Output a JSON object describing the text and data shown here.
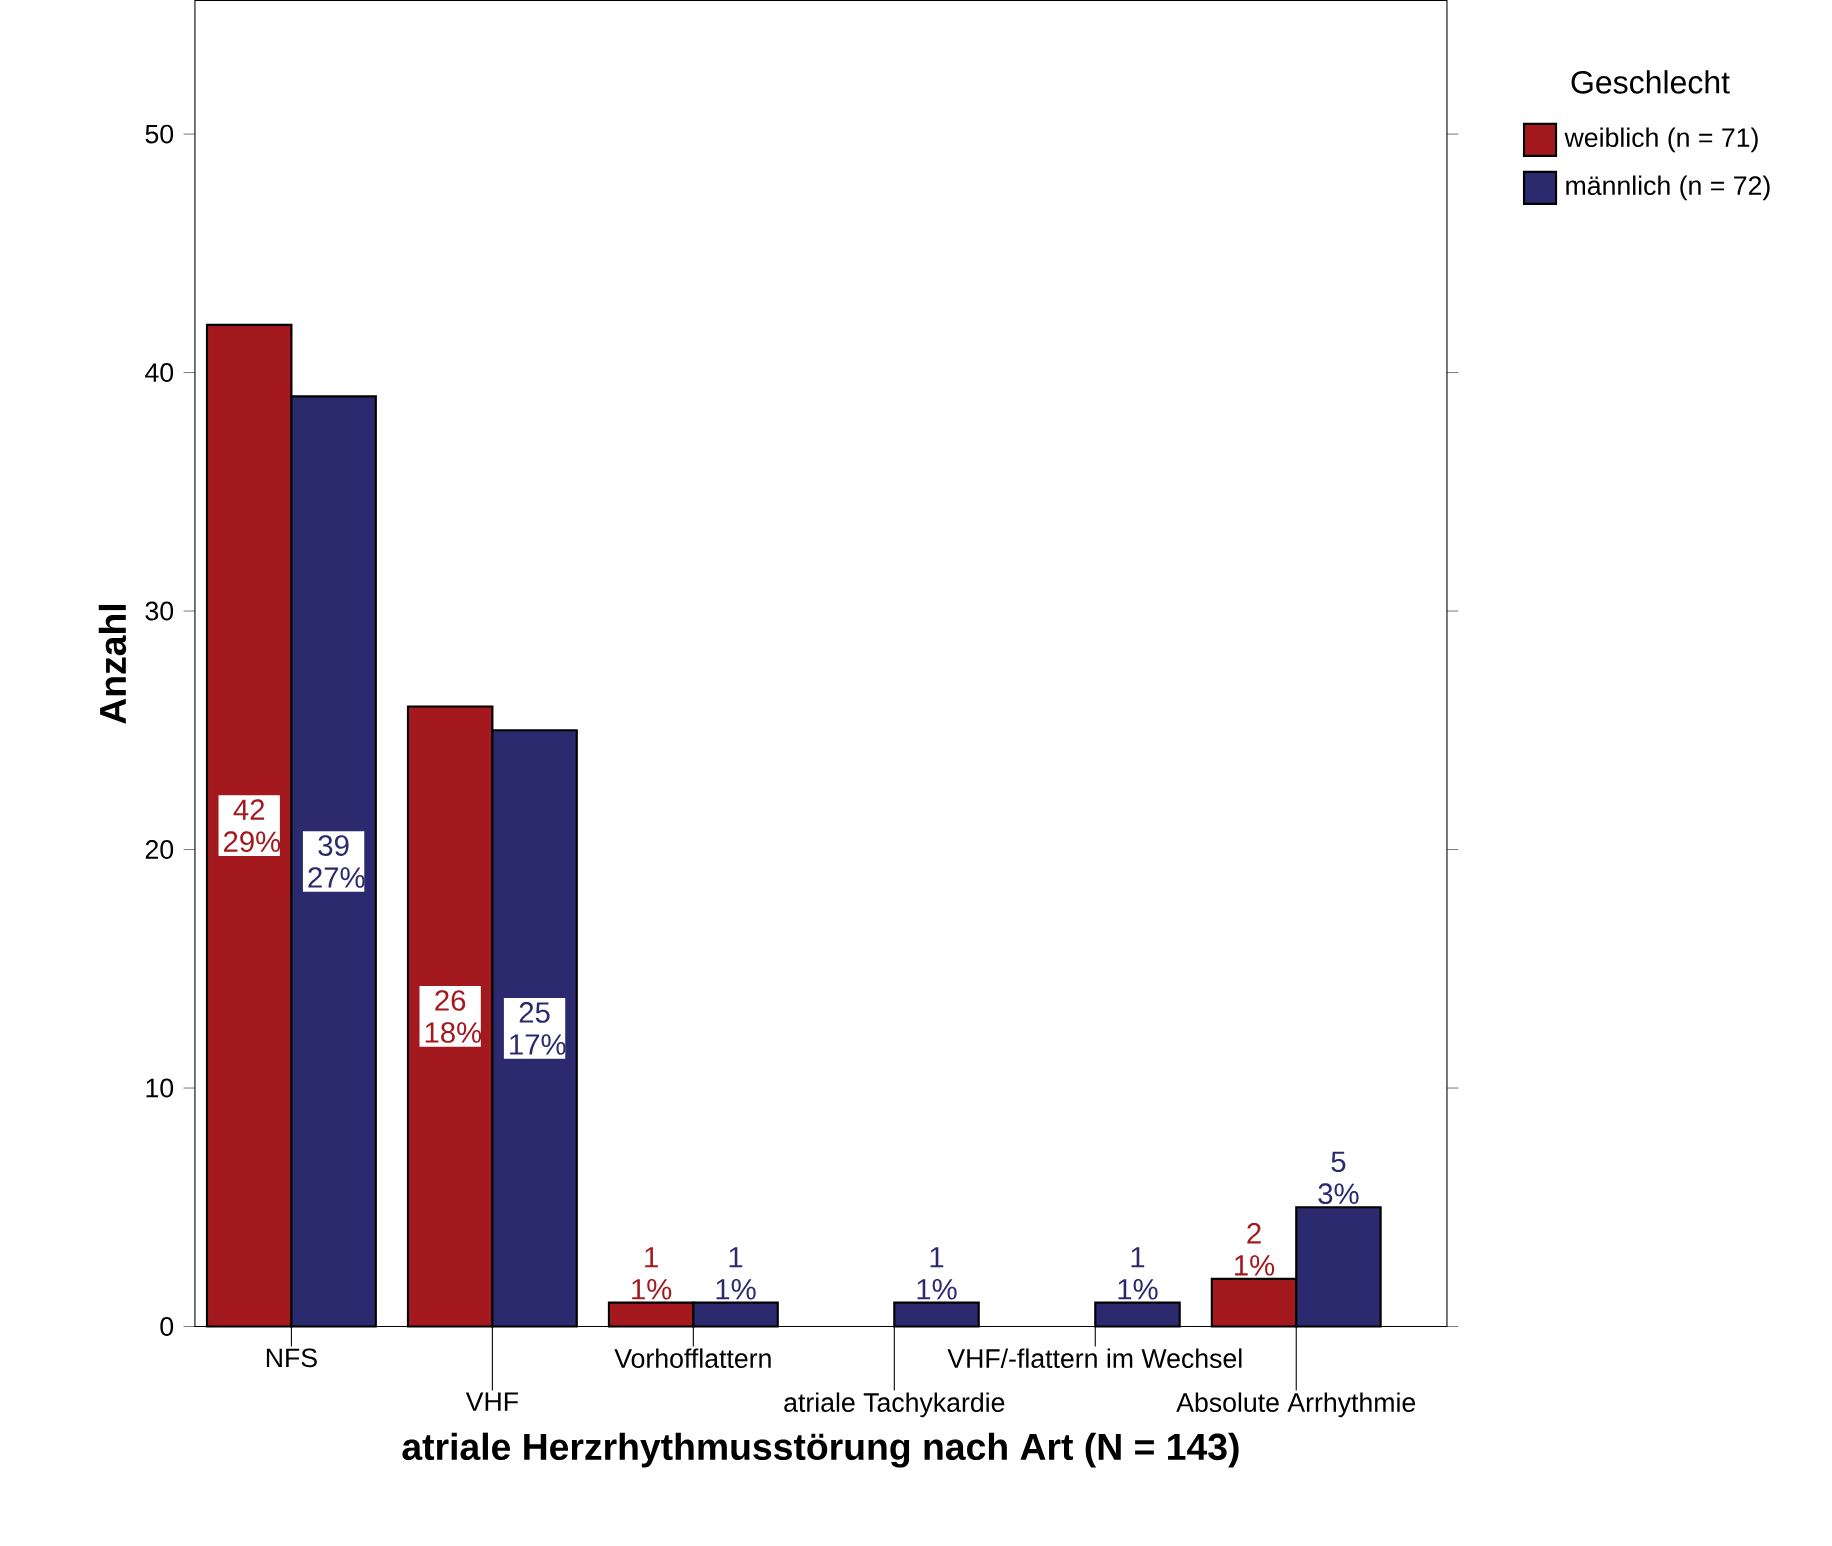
{
  "chart_data": {
    "type": "bar",
    "xlabel": "atriale Herzrhythmusstörung nach Art (N = 143)",
    "ylabel": "Anzahl",
    "legend_title": "Geschlecht",
    "legend": "top right",
    "categories": [
      "NFS",
      "VHF",
      "Vorhofflattern",
      "atriale Tachykardie",
      "VHF/-flattern im Wechsel",
      "Absolute Arrhythmie"
    ],
    "ylim": [
      0,
      55.6
    ],
    "yticks": [
      0,
      10,
      20,
      30,
      40,
      50
    ],
    "series": [
      {
        "name": "weiblich (n = 71)",
        "color": "#a3191e",
        "values": [
          42,
          26,
          1,
          0,
          0,
          2
        ],
        "value_labels": [
          "42 29%",
          "26 18%",
          "1 1%",
          null,
          null,
          "2 1%"
        ]
      },
      {
        "name": "männlich (n = 72)",
        "color": "#2b2a6e",
        "values": [
          39,
          25,
          1,
          1,
          1,
          5
        ],
        "value_labels": [
          "39 27%",
          "25 17%",
          "1 1%",
          "1 1%",
          "1 1%",
          "5 3%"
        ]
      }
    ]
  }
}
